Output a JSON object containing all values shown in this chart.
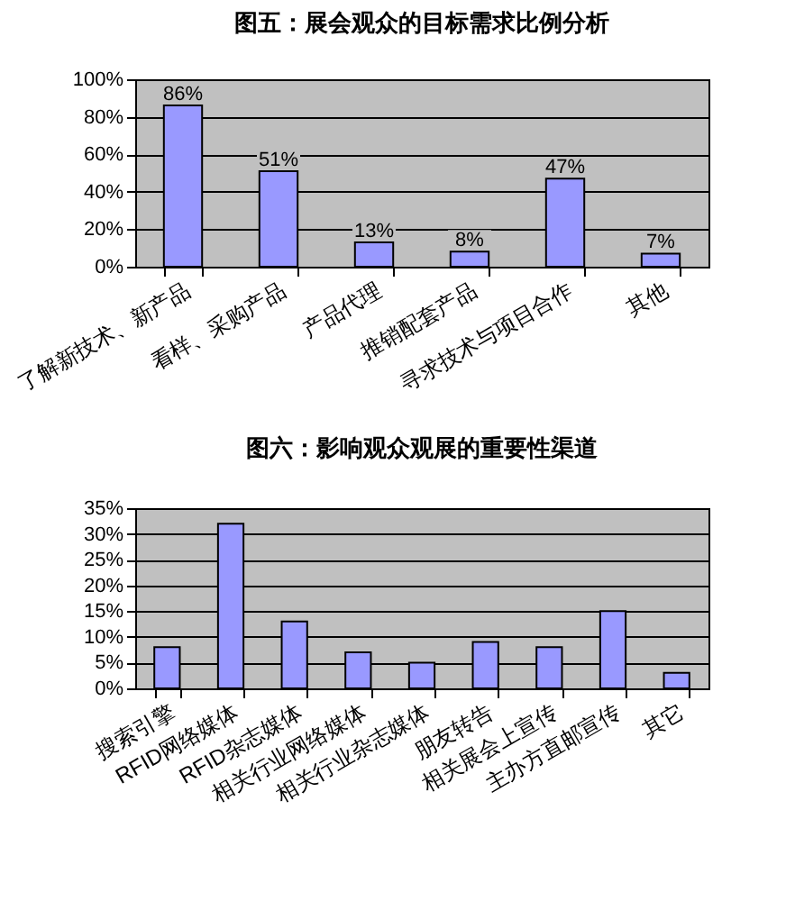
{
  "chart_data": [
    {
      "type": "bar",
      "title": "图五：展会观众的目标需求比例分析",
      "categories": [
        "了解新技术、新产品",
        "看样、采购产品",
        "产品代理",
        "推销配套产品",
        "寻求技术与项目合作",
        "其他"
      ],
      "values": [
        86,
        51,
        13,
        8,
        47,
        7
      ],
      "value_labels": [
        "86%",
        "51%",
        "13%",
        "8%",
        "47%",
        "7%"
      ],
      "color": "#9999ff",
      "ylim": [
        0,
        100
      ],
      "yticks": [
        {
          "value": 0,
          "label": "0%"
        },
        {
          "value": 20,
          "label": "20%"
        },
        {
          "value": 40,
          "label": "40%"
        },
        {
          "value": 60,
          "label": "60%"
        },
        {
          "value": 80,
          "label": "80%"
        },
        {
          "value": 100,
          "label": "100%"
        }
      ],
      "grid": "y"
    },
    {
      "type": "bar",
      "title": "图六：影响观众观展的重要性渠道",
      "categories": [
        "搜索引擎",
        "RFID网络媒体",
        "RFID杂志媒体",
        "相关行业网络媒体",
        "相关行业杂志媒体",
        "朋友转告",
        "相关展会上宣传",
        "主办方直邮宣传",
        "其它"
      ],
      "values": [
        8,
        32,
        13,
        7,
        5,
        9,
        8,
        15,
        3
      ],
      "color": "#9999ff",
      "ylim": [
        0,
        35
      ],
      "yticks": [
        {
          "value": 0,
          "label": "0%"
        },
        {
          "value": 5,
          "label": "5%"
        },
        {
          "value": 10,
          "label": "10%"
        },
        {
          "value": 15,
          "label": "15%"
        },
        {
          "value": 20,
          "label": "20%"
        },
        {
          "value": 25,
          "label": "25%"
        },
        {
          "value": 30,
          "label": "30%"
        },
        {
          "value": 35,
          "label": "35%"
        }
      ],
      "grid": "y"
    }
  ]
}
